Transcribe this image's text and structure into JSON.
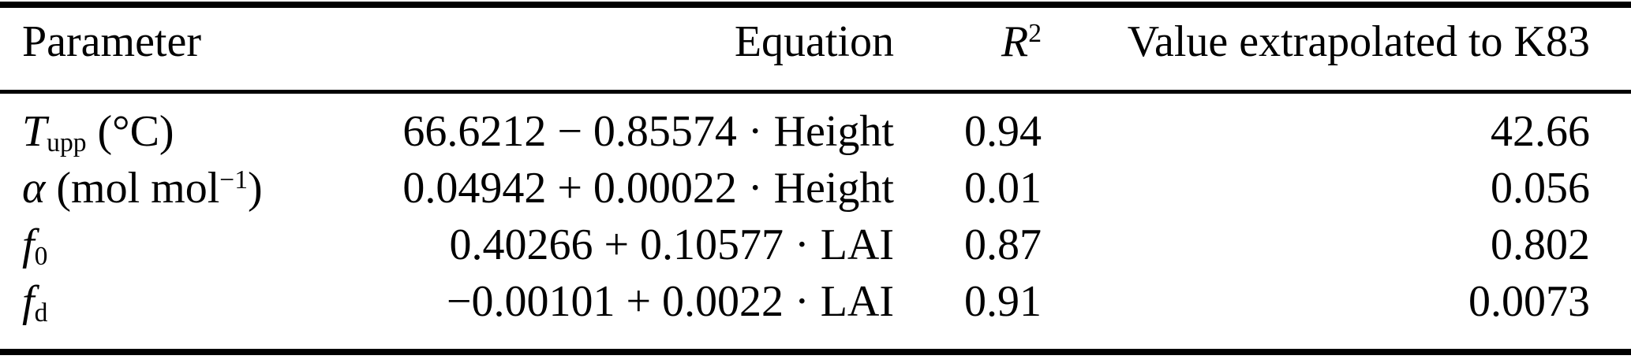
{
  "page": {
    "background_color": "#ffffff",
    "text_color": "#000000"
  },
  "table": {
    "header": {
      "parameter": "Parameter",
      "equation": "Equation",
      "r2_base": "R",
      "r2_sup": "2",
      "value_extrapolated": "Value extrapolated to K83"
    },
    "rows": [
      {
        "sym": "T",
        "sub": "upp",
        "pre": " (°C)",
        "sup": "",
        "post": "",
        "equation": "66.6212 − 0.85574 · Height",
        "r2": "0.94",
        "value": "42.66"
      },
      {
        "sym": "α",
        "sub": "",
        "pre": " (mol mol",
        "sup": "−1",
        "post": ")",
        "equation": "0.04942 + 0.00022 · Height",
        "r2": "0.01",
        "value": "0.056"
      },
      {
        "sym": "f",
        "sub": "0",
        "pre": "",
        "sup": "",
        "post": "",
        "equation": "0.40266 + 0.10577 · LAI",
        "r2": "0.87",
        "value": "0.802"
      },
      {
        "sym": "f",
        "sub": "d",
        "pre": "",
        "sup": "",
        "post": "",
        "equation": "−0.00101 + 0.0022 · LAI",
        "r2": "0.91",
        "value": "0.0073"
      }
    ]
  }
}
